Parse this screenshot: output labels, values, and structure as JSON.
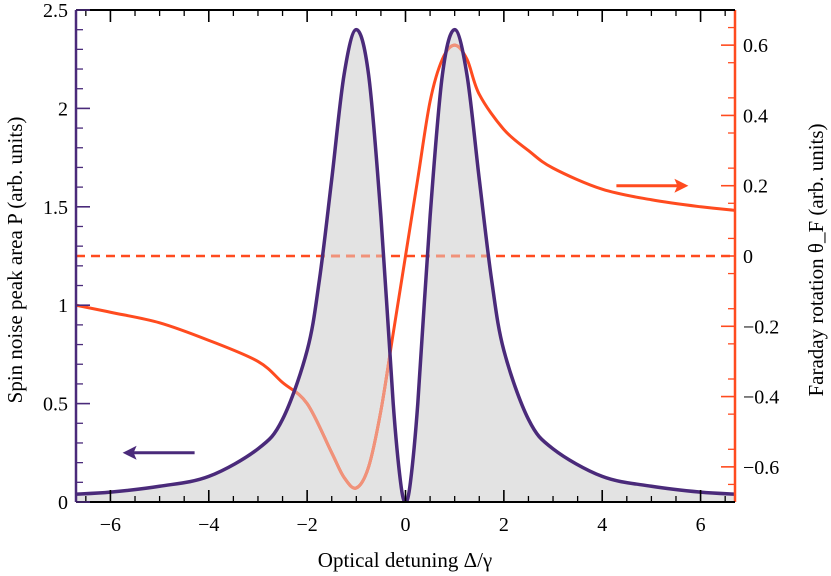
{
  "chart_data": {
    "type": "line",
    "xlabel": "Optical detuning Δ/γ",
    "ylabel_left": "Spin noise peak area P (arb. units)",
    "ylabel_right": "Faraday rotation θ_F (arb. units)",
    "xlim": [
      -6.7,
      6.7
    ],
    "ylim_left": [
      0,
      2.5
    ],
    "ylim_right": [
      -0.7,
      0.7
    ],
    "x_ticks": [
      -6,
      -4,
      -2,
      0,
      2,
      4,
      6
    ],
    "x_tick_labels": [
      "−6",
      "−4",
      "−2",
      "0",
      "2",
      "4",
      "6"
    ],
    "left_ticks": [
      0,
      0.5,
      1,
      1.5,
      2,
      2.5
    ],
    "left_tick_labels": [
      "0",
      "0.5",
      "1",
      "1.5",
      "2",
      "2.5"
    ],
    "right_ticks": [
      -0.6,
      -0.4,
      -0.2,
      0,
      0.2,
      0.4,
      0.6
    ],
    "right_tick_labels": [
      "−0.6",
      "−0.4",
      "−0.2",
      "0",
      "0.2",
      "0.4",
      "0.6"
    ],
    "grid": false,
    "colors": {
      "left_axis": "#4a2a7a",
      "right_axis": "#ff4b1f",
      "fill": "#e3e3e3"
    },
    "series": [
      {
        "axis": "left",
        "style": "solid, shaded below",
        "x": [
          -6.7,
          -6,
          -5,
          -4,
          -3,
          -2.5,
          -2,
          -1.75,
          -1.5,
          -1.25,
          -1,
          -0.75,
          -0.5,
          -0.25,
          -0.1,
          0,
          0.1,
          0.25,
          0.5,
          0.75,
          1,
          1.25,
          1.5,
          1.75,
          2,
          2.5,
          3,
          4,
          5,
          6,
          6.7
        ],
        "y": [
          0.04,
          0.05,
          0.08,
          0.13,
          0.27,
          0.42,
          0.77,
          1.13,
          1.64,
          2.17,
          2.4,
          2.17,
          1.45,
          0.5,
          0.1,
          0.0,
          0.1,
          0.5,
          1.45,
          2.17,
          2.4,
          2.17,
          1.64,
          1.13,
          0.77,
          0.42,
          0.27,
          0.13,
          0.08,
          0.05,
          0.04
        ]
      },
      {
        "axis": "right",
        "style": "solid",
        "x": [
          -6.7,
          -6,
          -5,
          -4,
          -3,
          -2.5,
          -2,
          -1.5,
          -1.25,
          -1,
          -0.75,
          -0.5,
          -0.25,
          0,
          0.25,
          0.5,
          0.75,
          1,
          1.25,
          1.5,
          2,
          2.5,
          3,
          4,
          5,
          6,
          6.7
        ],
        "y": [
          -0.14,
          -0.16,
          -0.19,
          -0.24,
          -0.3,
          -0.36,
          -0.42,
          -0.56,
          -0.63,
          -0.66,
          -0.6,
          -0.44,
          -0.22,
          0.0,
          0.22,
          0.44,
          0.56,
          0.6,
          0.56,
          0.46,
          0.36,
          0.3,
          0.25,
          0.19,
          0.16,
          0.14,
          0.13
        ]
      },
      {
        "axis": "right",
        "style": "dashed",
        "x": [
          -6.7,
          6.7
        ],
        "y": [
          0,
          0
        ]
      }
    ],
    "annotations": [
      {
        "text": "←",
        "meaning": "arrow pointing to left axis",
        "x": -5,
        "axis": "left",
        "y": 0.25
      },
      {
        "text": "→",
        "meaning": "arrow pointing to right axis",
        "x": 5,
        "axis": "right",
        "y": 0.2
      }
    ]
  }
}
